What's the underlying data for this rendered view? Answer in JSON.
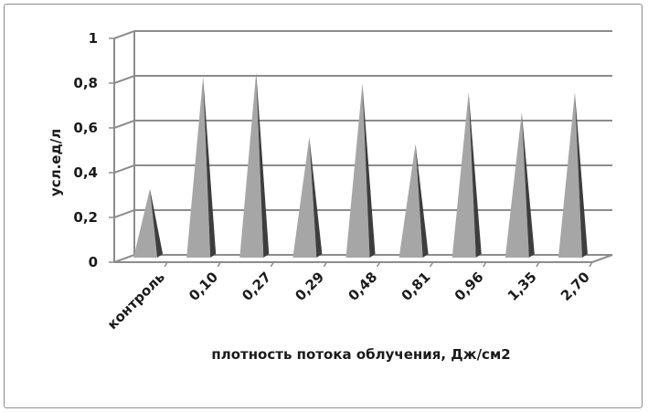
{
  "chart_data": {
    "type": "bar",
    "bar_shape": "3d-pyramid",
    "title": "",
    "xlabel": "плотность потока облучения, Дж/см2",
    "ylabel": "усл.ед/л",
    "categories": [
      "контроль",
      "0,10",
      "0,27",
      "0,29",
      "0,48",
      "0,81",
      "0,96",
      "1,35",
      "2,70"
    ],
    "values": [
      0.32,
      0.82,
      0.84,
      0.55,
      0.79,
      0.52,
      0.75,
      0.66,
      0.75
    ],
    "ylim": [
      0,
      1
    ],
    "yticks": [
      0,
      0.2,
      0.4,
      0.6,
      0.8,
      1
    ],
    "ytick_labels": [
      "0",
      "0,2",
      "0,4",
      "0,6",
      "0,8",
      "1"
    ],
    "grid": true,
    "legend": "none",
    "colors": {
      "bar_light": "#a6a6a6",
      "bar_dark": "#3d3d3d",
      "grid": "#8c8c8c",
      "wall": "#ffffff"
    }
  }
}
